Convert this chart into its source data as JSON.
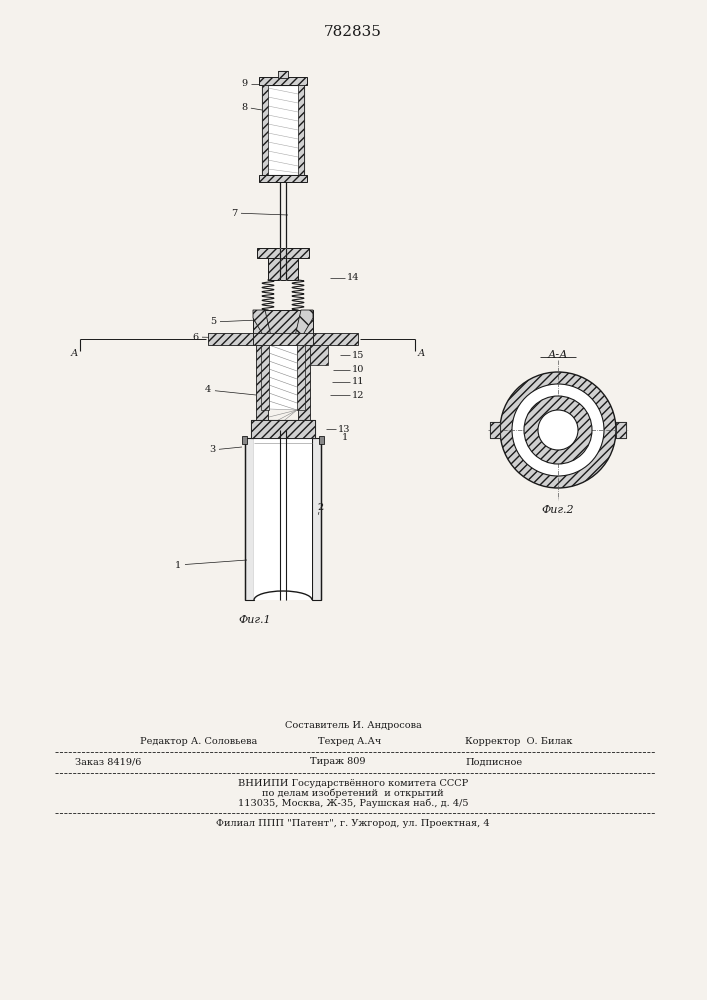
{
  "title": "782835",
  "bg_color": "#f5f2ed",
  "lc": "#1a1a1a",
  "fig1_caption": "Фиг.1",
  "fig2_caption": "Фиг.2",
  "aa_label": "А-А",
  "footer": {
    "comp": "Составитель И. Андросова",
    "ed": "Редактор А. Соловьева",
    "tech": "Техред А.Ач",
    "corr": "Корректор  О. Билак",
    "order": "Заказ 8419/6",
    "circ": "Тираж 809",
    "sub": "Подписное",
    "inst1": "ВНИИПИ Государствённого комитета СССР",
    "inst2": "по делам изобретений  и открытий",
    "addr": "113035, Москва, Ж-35, Раушская наб., д. 4/5",
    "branch": "Филиал ППП \"Патент\", г. Ужгород, ул. Проектная, 4"
  }
}
